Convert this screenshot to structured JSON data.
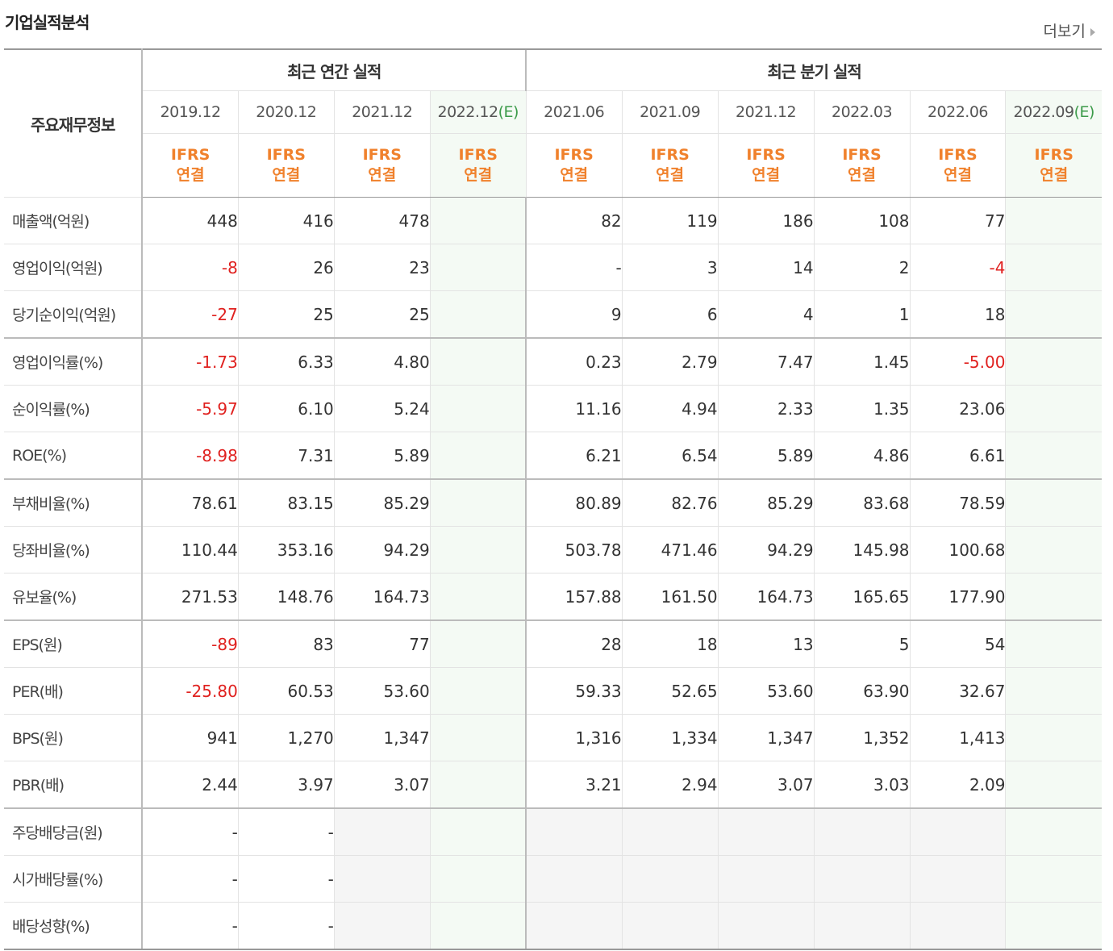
{
  "header": {
    "title": "기업실적분석",
    "more_label": "더보기"
  },
  "table": {
    "corner_label": "주요재무정보",
    "annual_group": "최근 연간 실적",
    "quarter_group": "최근 분기 실적",
    "periods": [
      "2019.12",
      "2020.12",
      "2021.12",
      "2022.12",
      "2021.06",
      "2021.09",
      "2021.12",
      "2022.03",
      "2022.06",
      "2022.09"
    ],
    "estimate_mark": "(E)",
    "standard_line1": "IFRS",
    "standard_line2": "연결",
    "rows": [
      {
        "label": "매출액(억원)",
        "values": [
          "448",
          "416",
          "478",
          "",
          "82",
          "119",
          "186",
          "108",
          "77",
          ""
        ]
      },
      {
        "label": "영업이익(억원)",
        "values": [
          "-8",
          "26",
          "23",
          "",
          "-",
          "3",
          "14",
          "2",
          "-4",
          ""
        ]
      },
      {
        "label": "당기순이익(억원)",
        "values": [
          "-27",
          "25",
          "25",
          "",
          "9",
          "6",
          "4",
          "1",
          "18",
          ""
        ]
      },
      {
        "label": "영업이익률(%)",
        "values": [
          "-1.73",
          "6.33",
          "4.80",
          "",
          "0.23",
          "2.79",
          "7.47",
          "1.45",
          "-5.00",
          ""
        ]
      },
      {
        "label": "순이익률(%)",
        "values": [
          "-5.97",
          "6.10",
          "5.24",
          "",
          "11.16",
          "4.94",
          "2.33",
          "1.35",
          "23.06",
          ""
        ]
      },
      {
        "label": "ROE(%)",
        "values": [
          "-8.98",
          "7.31",
          "5.89",
          "",
          "6.21",
          "6.54",
          "5.89",
          "4.86",
          "6.61",
          ""
        ]
      },
      {
        "label": "부채비율(%)",
        "values": [
          "78.61",
          "83.15",
          "85.29",
          "",
          "80.89",
          "82.76",
          "85.29",
          "83.68",
          "78.59",
          ""
        ]
      },
      {
        "label": "당좌비율(%)",
        "values": [
          "110.44",
          "353.16",
          "94.29",
          "",
          "503.78",
          "471.46",
          "94.29",
          "145.98",
          "100.68",
          ""
        ]
      },
      {
        "label": "유보율(%)",
        "values": [
          "271.53",
          "148.76",
          "164.73",
          "",
          "157.88",
          "161.50",
          "164.73",
          "165.65",
          "177.90",
          ""
        ]
      },
      {
        "label": "EPS(원)",
        "values": [
          "-89",
          "83",
          "77",
          "",
          "28",
          "18",
          "13",
          "5",
          "54",
          ""
        ]
      },
      {
        "label": "PER(배)",
        "values": [
          "-25.80",
          "60.53",
          "53.60",
          "",
          "59.33",
          "52.65",
          "53.60",
          "63.90",
          "32.67",
          ""
        ]
      },
      {
        "label": "BPS(원)",
        "values": [
          "941",
          "1,270",
          "1,347",
          "",
          "1,316",
          "1,334",
          "1,347",
          "1,352",
          "1,413",
          ""
        ]
      },
      {
        "label": "PBR(배)",
        "values": [
          "2.44",
          "3.97",
          "3.07",
          "",
          "3.21",
          "2.94",
          "3.07",
          "3.03",
          "2.09",
          ""
        ]
      },
      {
        "label": "주당배당금(원)",
        "values": [
          "-",
          "-",
          "",
          "",
          "",
          "",
          "",
          "",
          "",
          ""
        ]
      },
      {
        "label": "시가배당률(%)",
        "values": [
          "-",
          "-",
          "",
          "",
          "",
          "",
          "",
          "",
          "",
          ""
        ]
      },
      {
        "label": "배당성향(%)",
        "values": [
          "-",
          "-",
          "",
          "",
          "",
          "",
          "",
          "",
          "",
          ""
        ]
      }
    ]
  },
  "colors": {
    "negative": "#e0211f",
    "ifrs": "#f0812c",
    "estimate": "#3c9b4a"
  }
}
